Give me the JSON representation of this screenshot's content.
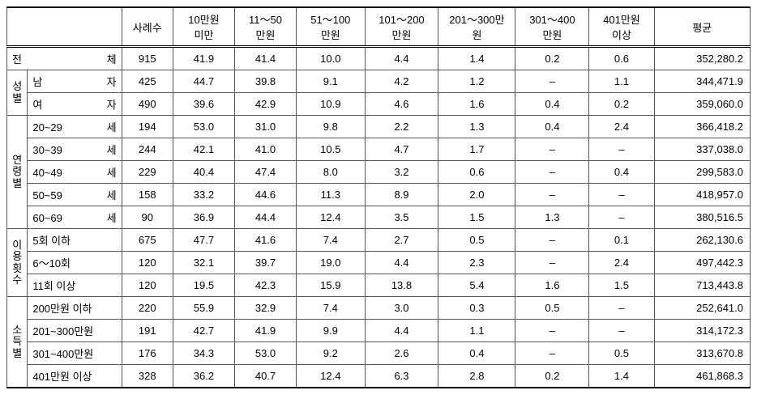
{
  "columns": {
    "c0_blank": "",
    "c1_count": "사례수",
    "c2": "10만원\n미만",
    "c3": "11～50\n만원",
    "c4": "51～100\n만원",
    "c5": "101～200\n만원",
    "c6": "201～300만\n원",
    "c7": "301～400\n만원",
    "c8": "401만원\n이상",
    "c9_avg": "평균"
  },
  "groups": {
    "total": "전　　　　　　　체",
    "gender": "성별",
    "age": "연령별",
    "usage": "이용횟수",
    "income": "소득별"
  },
  "labels": {
    "male": "남　　　　자",
    "female": "여　　　　자",
    "a20": "20~29　세",
    "a30": "30~39　세",
    "a40": "40~49　세",
    "a50": "50~59　세",
    "a60": "60~69　세",
    "u5": "5회 이하",
    "u6": "6～10회",
    "u11": "11회 이상",
    "i200": "200만원 이하",
    "i201": "201~300만원",
    "i301": "301~400만원",
    "i401": "401만원 이상"
  },
  "rows": {
    "total": {
      "n": "915",
      "v": [
        "41.9",
        "41.4",
        "10.0",
        "4.4",
        "1.4",
        "0.2",
        "0.6"
      ],
      "avg": "352,280.2"
    },
    "male": {
      "n": "425",
      "v": [
        "44.7",
        "39.8",
        "9.1",
        "4.2",
        "1.2",
        "–",
        "1.1"
      ],
      "avg": "344,471.9"
    },
    "female": {
      "n": "490",
      "v": [
        "39.6",
        "42.9",
        "10.9",
        "4.6",
        "1.6",
        "0.4",
        "0.2"
      ],
      "avg": "359,060.0"
    },
    "a20": {
      "n": "194",
      "v": [
        "53.0",
        "31.0",
        "9.8",
        "2.2",
        "1.3",
        "0.4",
        "2.4"
      ],
      "avg": "366,418.2"
    },
    "a30": {
      "n": "244",
      "v": [
        "42.1",
        "41.0",
        "10.5",
        "4.7",
        "1.7",
        "–",
        "–"
      ],
      "avg": "337,038.0"
    },
    "a40": {
      "n": "229",
      "v": [
        "40.4",
        "47.4",
        "8.0",
        "3.2",
        "0.6",
        "–",
        "0.4"
      ],
      "avg": "299,583.0"
    },
    "a50": {
      "n": "158",
      "v": [
        "33.2",
        "44.6",
        "11.3",
        "8.9",
        "2.0",
        "–",
        "–"
      ],
      "avg": "418,957.0"
    },
    "a60": {
      "n": "90",
      "v": [
        "36.9",
        "44.4",
        "12.4",
        "3.5",
        "1.5",
        "1.3",
        "–"
      ],
      "avg": "380,516.5"
    },
    "u5": {
      "n": "675",
      "v": [
        "47.7",
        "41.6",
        "7.4",
        "2.7",
        "0.5",
        "–",
        "0.1"
      ],
      "avg": "262,130.6"
    },
    "u6": {
      "n": "120",
      "v": [
        "32.1",
        "39.7",
        "19.0",
        "4.4",
        "2.3",
        "–",
        "2.4"
      ],
      "avg": "497,442.3"
    },
    "u11": {
      "n": "120",
      "v": [
        "19.5",
        "42.3",
        "15.9",
        "13.8",
        "5.4",
        "1.6",
        "1.5"
      ],
      "avg": "713,443.8"
    },
    "i200": {
      "n": "220",
      "v": [
        "55.9",
        "32.9",
        "7.4",
        "3.0",
        "0.3",
        "0.5",
        "–"
      ],
      "avg": "252,641.0"
    },
    "i201": {
      "n": "191",
      "v": [
        "42.7",
        "41.9",
        "9.9",
        "4.4",
        "1.1",
        "–",
        "–"
      ],
      "avg": "314,172.3"
    },
    "i301": {
      "n": "176",
      "v": [
        "34.3",
        "53.0",
        "9.2",
        "2.6",
        "0.4",
        "–",
        "0.5"
      ],
      "avg": "313,670.8"
    },
    "i401": {
      "n": "328",
      "v": [
        "36.2",
        "40.7",
        "12.4",
        "6.3",
        "2.8",
        "0.2",
        "1.4"
      ],
      "avg": "461,868.3"
    }
  }
}
